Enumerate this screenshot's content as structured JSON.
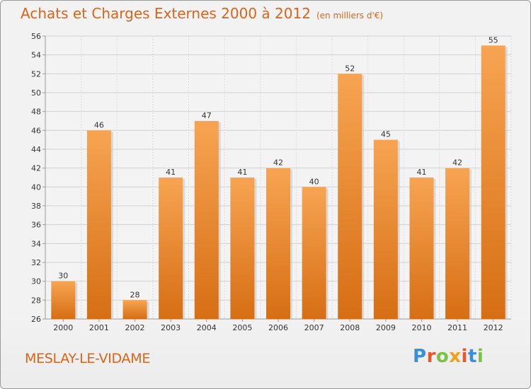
{
  "header": {
    "title": "Achats et Charges Externes 2000 à 2012",
    "subtitle": "(en milliers d'€)"
  },
  "footer": {
    "commune": "MESLAY-LE-VIDAME",
    "logo_text": "Proxiti"
  },
  "colors": {
    "title": "#d9641b",
    "bar_top": "#f7a452",
    "bar_bottom": "#d66e14",
    "logo_letters": [
      "#3a8fd6",
      "#e8562a",
      "#7cc242",
      "#f0a21c",
      "#e8562a",
      "#3a8fd6",
      "#7cc242"
    ]
  },
  "chart_data": {
    "type": "bar",
    "categories": [
      "2000",
      "2001",
      "2002",
      "2003",
      "2004",
      "2005",
      "2006",
      "2007",
      "2008",
      "2009",
      "2010",
      "2011",
      "2012"
    ],
    "values": [
      30,
      46,
      28,
      41,
      47,
      41,
      42,
      40,
      52,
      45,
      41,
      42,
      55
    ],
    "ylim": [
      26,
      56
    ],
    "yticks": [
      26,
      28,
      30,
      32,
      34,
      36,
      38,
      40,
      42,
      44,
      46,
      48,
      50,
      52,
      54,
      56
    ],
    "grid": true,
    "data_labels": true
  }
}
